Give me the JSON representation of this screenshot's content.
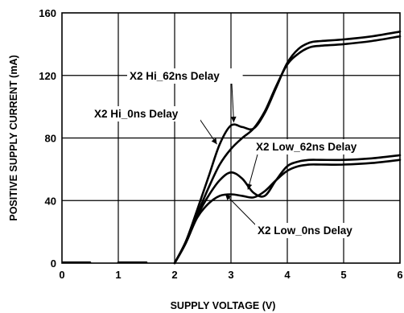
{
  "chart_data": {
    "type": "line",
    "xlabel": "SUPPLY VOLTAGE (V)",
    "ylabel": "POSITIVE SUPPLY CURRENT (mA)",
    "xlim": [
      0,
      6
    ],
    "ylim": [
      0,
      160
    ],
    "xticks": [
      "0",
      "1",
      "2",
      "3",
      "4",
      "5",
      "6"
    ],
    "yticks": [
      "0",
      "40",
      "80",
      "120",
      "160"
    ],
    "grid": true,
    "series": [
      {
        "name": "X2 Hi_62ns Delay",
        "x": [
          0,
          0.5,
          1,
          1.5,
          2,
          2.2,
          2.4,
          2.6,
          2.8,
          3.0,
          3.2,
          3.4,
          3.6,
          3.8,
          4.0,
          4.2,
          4.4,
          4.6,
          5.0,
          5.5,
          6.0
        ],
        "y": [
          0.5,
          0.5,
          0.5,
          0.5,
          0,
          14,
          34,
          55,
          76,
          88,
          87,
          86,
          96,
          112,
          128,
          137,
          141,
          142,
          143,
          145,
          148
        ]
      },
      {
        "name": "X2 Hi_0ns Delay",
        "x": [
          0,
          0.5,
          1,
          1.5,
          2,
          2.2,
          2.4,
          2.6,
          2.8,
          3.0,
          3.2,
          3.4,
          3.6,
          3.8,
          4.0,
          4.2,
          4.4,
          4.6,
          5.0,
          5.5,
          6.0
        ],
        "y": [
          0.5,
          0.5,
          0.5,
          0.5,
          0,
          13,
          31,
          48,
          63,
          73,
          80,
          86,
          97,
          113,
          127,
          134,
          138,
          139,
          140,
          142,
          145
        ]
      },
      {
        "name": "X2 Low_62ns Delay",
        "x": [
          0,
          0.5,
          1,
          1.5,
          2,
          2.2,
          2.4,
          2.6,
          2.8,
          3.0,
          3.2,
          3.4,
          3.6,
          3.8,
          4.0,
          4.2,
          4.4,
          4.6,
          5.0,
          5.5,
          6.0
        ],
        "y": [
          0.5,
          0.5,
          0.5,
          0.5,
          0,
          13,
          30,
          43,
          53,
          58,
          54,
          45,
          43,
          53,
          62,
          65,
          66,
          66,
          66,
          67,
          69
        ]
      },
      {
        "name": "X2 Low_0ns Delay",
        "x": [
          0,
          0.5,
          1,
          1.5,
          2,
          2.2,
          2.4,
          2.6,
          2.8,
          3.0,
          3.2,
          3.4,
          3.6,
          3.8,
          4.0,
          4.2,
          4.4,
          4.6,
          5.0,
          5.5,
          6.0
        ],
        "y": [
          0.5,
          0.5,
          0.5,
          0.5,
          0,
          13,
          29,
          38,
          43,
          44,
          43,
          42,
          46,
          53,
          59,
          62,
          63,
          63,
          63,
          64,
          66
        ]
      }
    ],
    "annotations": [
      {
        "text": "X2 Hi_62ns Delay",
        "point": [
          3.05,
          90
        ]
      },
      {
        "text": "X2 Hi_0ns Delay",
        "point": [
          2.75,
          76
        ]
      },
      {
        "text": "X2 Low_62ns Delay",
        "point": [
          3.3,
          47
        ]
      },
      {
        "text": "X2 Low_0ns Delay",
        "point": [
          2.9,
          44
        ]
      }
    ]
  }
}
